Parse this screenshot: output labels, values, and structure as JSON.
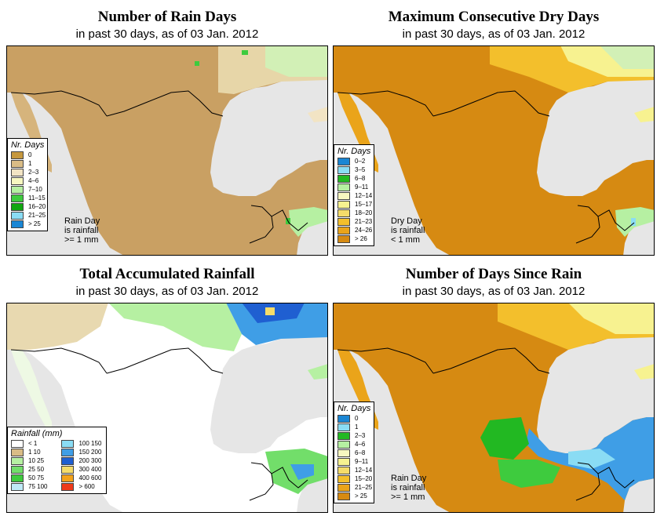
{
  "panels": [
    {
      "title": "Number of Rain Days",
      "subtitle": "in past 30 days, as of  03 Jan. 2012",
      "legend_title": "Nr. Days",
      "legend": [
        {
          "label": "0",
          "color": "#c6983e"
        },
        {
          "label": "1",
          "color": "#d9bc86"
        },
        {
          "label": "2–3",
          "color": "#f2e4c4"
        },
        {
          "label": "4–6",
          "color": "#f7f7c0"
        },
        {
          "label": "7–10",
          "color": "#b6f0a2"
        },
        {
          "label": "11–15",
          "color": "#3ecb3e"
        },
        {
          "label": "16–20",
          "color": "#11a611"
        },
        {
          "label": "21–25",
          "color": "#8adcf4"
        },
        {
          "label": "> 25",
          "color": "#1a86d4"
        }
      ],
      "note": [
        "Rain Day",
        "is rainfall",
        ">= 1 mm"
      ]
    },
    {
      "title": "Maximum Consecutive Dry Days",
      "subtitle": "in past 30 days, as of  03 Jan. 2012",
      "legend_title": "Nr. Days",
      "legend": [
        {
          "label": "0–2",
          "color": "#1a86d4"
        },
        {
          "label": "3–5",
          "color": "#8adcf4"
        },
        {
          "label": "6–8",
          "color": "#22b822"
        },
        {
          "label": "9–11",
          "color": "#b6f0a2"
        },
        {
          "label": "12–14",
          "color": "#f7f7c0"
        },
        {
          "label": "15–17",
          "color": "#f7f290"
        },
        {
          "label": "18–20",
          "color": "#f5dc6a"
        },
        {
          "label": "21–23",
          "color": "#f3bf2c"
        },
        {
          "label": "24–26",
          "color": "#eaa41a"
        },
        {
          "label": "> 26",
          "color": "#d68a12"
        }
      ],
      "note": [
        "Dry Day",
        "is rainfall",
        "< 1 mm"
      ]
    },
    {
      "title": "Total Accumulated Rainfall",
      "subtitle": "in past 30 days, as of  03 Jan. 2012",
      "legend_title": "Rainfall (mm)",
      "legend_left": [
        {
          "label": "< 1",
          "color": "#ffffff"
        },
        {
          "label": "1   10",
          "color": "#d9bc86"
        },
        {
          "label": "10   25",
          "color": "#b6f0a2"
        },
        {
          "label": "25   50",
          "color": "#72de6a"
        },
        {
          "label": "50   75",
          "color": "#3ecb3e"
        },
        {
          "label": "75   100",
          "color": "#bfeaf7"
        }
      ],
      "legend_right": [
        {
          "label": "100   150",
          "color": "#8adcf4"
        },
        {
          "label": "150   200",
          "color": "#3f9ee6"
        },
        {
          "label": "200   300",
          "color": "#1f5fd1"
        },
        {
          "label": "300   400",
          "color": "#f5dc6a"
        },
        {
          "label": "400   600",
          "color": "#f3a21a"
        },
        {
          "label": "> 600",
          "color": "#ee3a1a"
        }
      ]
    },
    {
      "title": "Number of Days Since Rain",
      "subtitle": "in past 30 days, as of  03 Jan. 2012",
      "legend_title": "Nr. Days",
      "legend": [
        {
          "label": "0",
          "color": "#1a86d4"
        },
        {
          "label": "1",
          "color": "#8adcf4"
        },
        {
          "label": "2–3",
          "color": "#22b822"
        },
        {
          "label": "4–6",
          "color": "#b6f0a2"
        },
        {
          "label": "6–8",
          "color": "#f7f7c0"
        },
        {
          "label": "9–11",
          "color": "#f7f290"
        },
        {
          "label": "12–14",
          "color": "#f5dc6a"
        },
        {
          "label": "15–20",
          "color": "#f3bf2c"
        },
        {
          "label": "21–25",
          "color": "#eaa41a"
        },
        {
          "label": "> 25",
          "color": "#d68a12"
        }
      ],
      "note": [
        "Rain Day",
        "is rainfall",
        ">= 1 mm"
      ]
    }
  ],
  "colors": {
    "ocean": "#e6e6e6",
    "border": "#000000"
  }
}
